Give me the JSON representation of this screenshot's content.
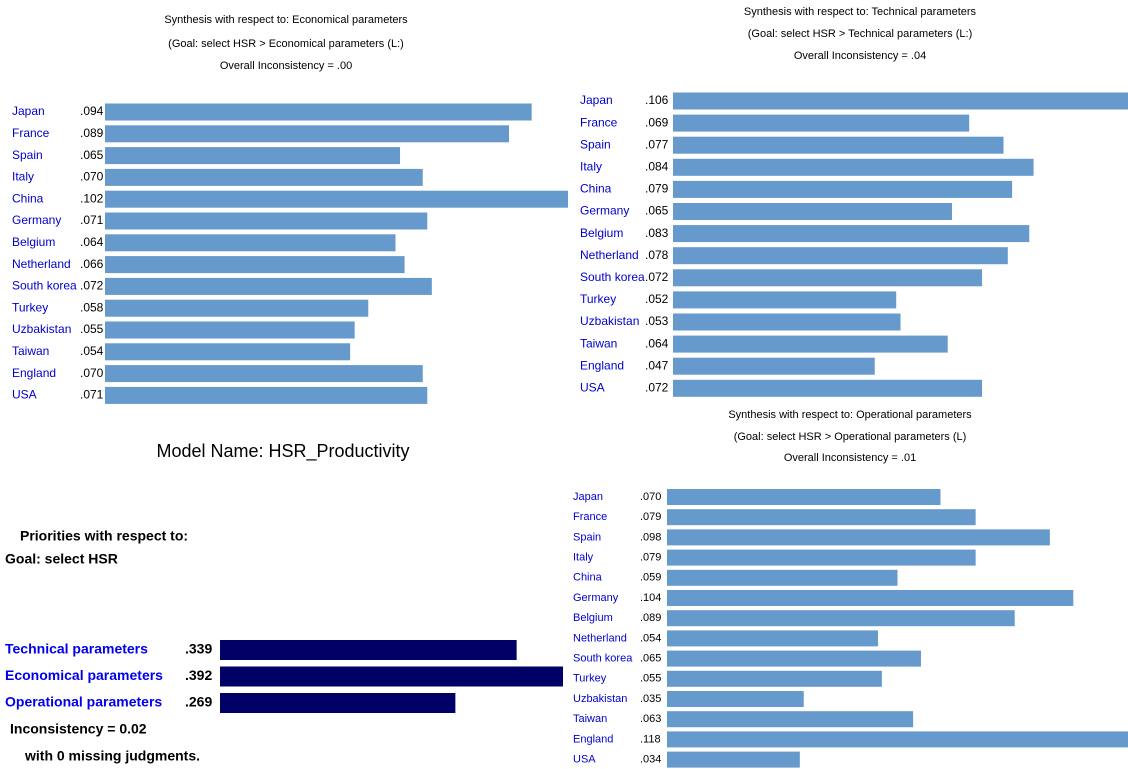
{
  "model_name": "Model Name: HSR_Productivity",
  "chart_data": [
    {
      "type": "bar",
      "orientation": "horizontal",
      "color": "#6699cc",
      "title": "Synthesis with respect to: Economical parameters",
      "subtitle": "(Goal: select HSR > Economical parameters (L:)",
      "annotation": "Overall Inconsistency = .00",
      "categories": [
        "Japan",
        "France",
        "Spain",
        "Italy",
        "China",
        "Germany",
        "Belgium",
        "Netherland",
        "South korea",
        "Turkey",
        "Uzbakistan",
        "Taiwan",
        "England",
        "USA"
      ],
      "values": [
        0.094,
        0.089,
        0.065,
        0.07,
        0.102,
        0.071,
        0.064,
        0.066,
        0.072,
        0.058,
        0.055,
        0.054,
        0.07,
        0.071
      ],
      "value_labels": [
        ".094",
        ".089",
        ".065",
        ".070",
        ".102",
        ".071",
        ".064",
        ".066",
        ".072",
        ".058",
        ".055",
        ".054",
        ".070",
        ".071"
      ]
    },
    {
      "type": "bar",
      "orientation": "horizontal",
      "color": "#6699cc",
      "title": "Synthesis with respect to: Technical parameters",
      "subtitle": "(Goal: select HSR > Technical parameters (L:)",
      "annotation": "Overall Inconsistency = .04",
      "categories": [
        "Japan",
        "France",
        "Spain",
        "Italy",
        "China",
        "Germany",
        "Belgium",
        "Netherland",
        "South korea",
        "Turkey",
        "Uzbakistan",
        "Taiwan",
        "England",
        "USA"
      ],
      "values": [
        0.106,
        0.069,
        0.077,
        0.084,
        0.079,
        0.065,
        0.083,
        0.078,
        0.072,
        0.052,
        0.053,
        0.064,
        0.047,
        0.072
      ],
      "value_labels": [
        ".106",
        ".069",
        ".077",
        ".084",
        ".079",
        ".065",
        ".083",
        ".078",
        ".072",
        ".052",
        ".053",
        ".064",
        ".047",
        ".072"
      ]
    },
    {
      "type": "bar",
      "orientation": "horizontal",
      "color": "#6699cc",
      "title": "Synthesis with respect to: Operational parameters",
      "subtitle": "(Goal: select HSR > Operational parameters (L)",
      "annotation": "Overall Inconsistency = .01",
      "categories": [
        "Japan",
        "France",
        "Spain",
        "Italy",
        "China",
        "Germany",
        "Belgium",
        "Netherland",
        "South korea",
        "Turkey",
        "Uzbakistan",
        "Taiwan",
        "England",
        "USA"
      ],
      "values": [
        0.07,
        0.079,
        0.098,
        0.079,
        0.059,
        0.104,
        0.089,
        0.054,
        0.065,
        0.055,
        0.035,
        0.063,
        0.118,
        0.034
      ],
      "value_labels": [
        ".070",
        ".079",
        ".098",
        ".079",
        ".059",
        ".104",
        ".089",
        ".054",
        ".065",
        ".055",
        ".035",
        ".063",
        ".118",
        ".034"
      ]
    },
    {
      "type": "bar",
      "orientation": "horizontal",
      "color": "#000066",
      "title": "Priorities with respect to:",
      "subtitle": "Goal: select HSR",
      "annotation": "Inconsistency = 0.02",
      "note": "with 0  missing judgments.",
      "categories": [
        "Technical parameters",
        "Economical parameters",
        "Operational parameters"
      ],
      "values": [
        0.339,
        0.392,
        0.269
      ],
      "value_labels": [
        ".339",
        ".392",
        ".269"
      ]
    }
  ]
}
